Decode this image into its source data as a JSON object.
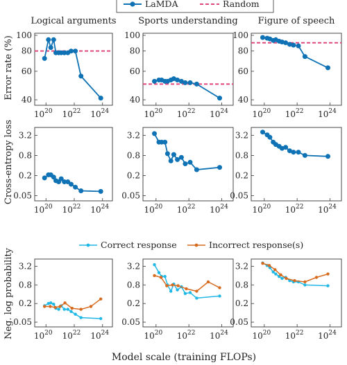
{
  "legend_top": [
    {
      "name": "LaMDA",
      "color": "#0f72b4",
      "style": "line-marker"
    },
    {
      "name": "Random",
      "color": "#e0457b",
      "style": "dashed"
    }
  ],
  "legend_bottom": [
    {
      "name": "Correct response",
      "color": "#1fb7e6",
      "style": "line-dot"
    },
    {
      "name": "Incorrect response(s)",
      "color": "#d66a1f",
      "style": "line-dot"
    }
  ],
  "xlabel": "Model scale (training FLOPs)",
  "row_ylabels": [
    "Error rate (%)",
    "Cross-entropy loss",
    "Neg. log probability"
  ],
  "column_titles": [
    "Logical arguments",
    "Sports understanding",
    "Figure of speech"
  ],
  "x_ticks": [
    {
      "exp": "20",
      "value": 1e+20
    },
    {
      "exp": "22",
      "value": 1e+22
    },
    {
      "exp": "24",
      "value": 1e+24
    }
  ],
  "row_yticks": [
    [
      {
        "label": "100",
        "value": 100
      },
      {
        "label": "80",
        "value": 80
      },
      {
        "label": "60",
        "value": 60
      },
      {
        "label": "40",
        "value": 40
      }
    ],
    [
      {
        "label": "3.2",
        "value": 3.2
      },
      {
        "label": "0.8",
        "value": 0.8
      },
      {
        "label": "0.2",
        "value": 0.2
      },
      {
        "label": "0.05",
        "value": 0.05
      }
    ],
    [
      {
        "label": "3.2",
        "value": 3.2
      },
      {
        "label": "0.8",
        "value": 0.8
      },
      {
        "label": "0.2",
        "value": 0.2
      },
      {
        "label": "0.05",
        "value": 0.05
      }
    ]
  ],
  "chart_data": {
    "type": "line",
    "x_scale": "log",
    "xlim": [
      1.6e+19,
      5e+24
    ],
    "x_flops": [
      8e+19,
      1.5e+20,
      2.2e+20,
      3.5e+20,
      5e+20,
      8e+20,
      1.2e+21,
      2e+21,
      3.5e+21,
      6e+21,
      1.2e+22,
      3e+22,
      7.5e+23
    ],
    "x_flops_short": [
      8e+19,
      2e+20,
      4.5e+20,
      1e+21,
      2.2e+21,
      7e+21,
      3e+22,
      1.5e+23,
      7.5e+23
    ],
    "rows": [
      {
        "ylabel": "Error rate (%)",
        "y_scale": "log",
        "ylim": [
          37,
          103
        ],
        "charts": [
          {
            "title": "Logical arguments",
            "random": 80,
            "series": [
              {
                "name": "LaMDA",
                "x_ref": "x_flops",
                "values": [
                  72,
                  94,
                  84,
                  94,
                  78,
                  78,
                  78,
                  78,
                  78,
                  80,
                  80,
                  56,
                  41
                ]
              }
            ]
          },
          {
            "title": "Sports understanding",
            "random": 50,
            "series": [
              {
                "name": "LaMDA",
                "x_ref": "x_flops",
                "values": [
                  52,
                  53,
                  53,
                  52,
                  52,
                  53,
                  54,
                  53,
                  52,
                  51,
                  51,
                  50,
                  41
                ]
              }
            ]
          },
          {
            "title": "Figure of speech",
            "random": 90,
            "series": [
              {
                "name": "LaMDA",
                "x_ref": "x_flops",
                "values": [
                  97,
                  96,
                  95,
                  93,
                  94,
                  92,
                  91,
                  90,
                  88,
                  87,
                  86,
                  74,
                  63
                ]
              }
            ]
          }
        ]
      },
      {
        "ylabel": "Cross-entropy loss",
        "y_scale": "log",
        "ylim": [
          0.035,
          5.5
        ],
        "charts": [
          {
            "series": [
              {
                "name": "LaMDA",
                "x_ref": "x_flops",
                "values": [
                  0.17,
                  0.21,
                  0.21,
                  0.18,
                  0.14,
                  0.13,
                  0.16,
                  0.13,
                  0.13,
                  0.11,
                  0.09,
                  0.07,
                  0.067
                ]
              }
            ]
          },
          {
            "series": [
              {
                "name": "LaMDA",
                "x_ref": "x_flops",
                "values": [
                  3.6,
                  2.0,
                  2.0,
                  2.0,
                  0.9,
                  0.55,
                  0.85,
                  0.6,
                  0.7,
                  0.45,
                  0.5,
                  0.3,
                  0.35
                ]
              }
            ]
          },
          {
            "series": [
              {
                "name": "LaMDA",
                "x_ref": "x_flops",
                "values": [
                  4.0,
                  3.3,
                  2.8,
                  2.0,
                  1.7,
                  1.5,
                  1.3,
                  1.4,
                  1.1,
                  1.0,
                  1.0,
                  0.8,
                  0.75
                ]
              }
            ]
          }
        ]
      },
      {
        "ylabel": "Neg. log probability",
        "y_scale": "log",
        "ylim": [
          0.035,
          5.5
        ],
        "charts": [
          {
            "series": [
              {
                "name": "Correct response",
                "x_ref": "x_flops",
                "values": [
                  0.17,
                  0.2,
                  0.21,
                  0.19,
                  0.14,
                  0.13,
                  0.17,
                  0.13,
                  0.13,
                  0.11,
                  0.09,
                  0.07,
                  0.065
                ]
              },
              {
                "name": "Incorrect response(s)",
                "x_ref": "x_flops_short",
                "values": [
                  0.16,
                  0.16,
                  0.15,
                  0.16,
                  0.21,
                  0.14,
                  0.13,
                  0.16,
                  0.28
                ]
              }
            ]
          },
          {
            "series": [
              {
                "name": "Correct response",
                "x_ref": "x_flops",
                "values": [
                  3.6,
                  2.0,
                  1.5,
                  1.5,
                  0.8,
                  0.5,
                  0.85,
                  0.55,
                  0.7,
                  0.42,
                  0.45,
                  0.3,
                  0.35
                ]
              },
              {
                "name": "Incorrect response(s)",
                "x_ref": "x_flops_short",
                "values": [
                  1.6,
                  1.4,
                  0.75,
                  0.8,
                  0.75,
                  0.6,
                  0.5,
                  1.0,
                  0.65
                ]
              }
            ]
          },
          {
            "series": [
              {
                "name": "Correct response",
                "x_ref": "x_flops",
                "values": [
                  4.1,
                  3.4,
                  2.9,
                  2.1,
                  1.8,
                  1.5,
                  1.3,
                  1.4,
                  1.1,
                  1.0,
                  1.0,
                  0.8,
                  0.75
                ]
              },
              {
                "name": "Incorrect response(s)",
                "x_ref": "x_flops_short",
                "values": [
                  4.0,
                  3.4,
                  2.5,
                  1.7,
                  1.3,
                  1.1,
                  1.0,
                  1.4,
                  1.8
                ]
              }
            ]
          }
        ]
      }
    ]
  }
}
